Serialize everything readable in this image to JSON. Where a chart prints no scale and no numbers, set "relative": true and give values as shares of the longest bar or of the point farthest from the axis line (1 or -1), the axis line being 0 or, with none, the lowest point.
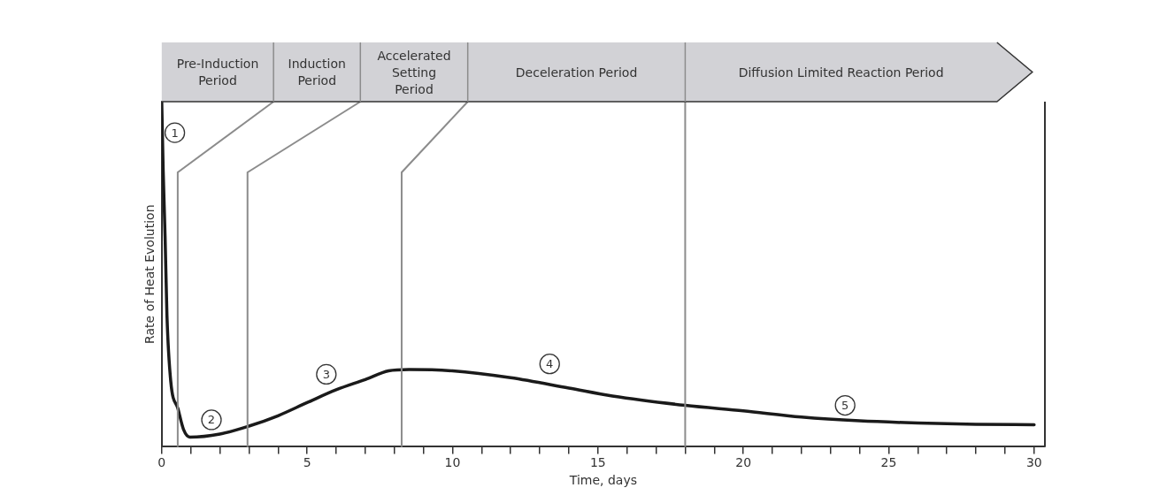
{
  "chart_data": {
    "type": "line",
    "relative": true,
    "xlabel": "Time, days",
    "ylabel": "Rate of Heat Evolution",
    "x": [
      0,
      0.05,
      0.115,
      0.18,
      0.31,
      0.56,
      0.75,
      0.97,
      2,
      3,
      4,
      5,
      6,
      7,
      7.8,
      8.5,
      10,
      12,
      14,
      15.5,
      18,
      20,
      22,
      24,
      26,
      28,
      30
    ],
    "series": [
      {
        "color": "#1a1a1a",
        "values": [
          1,
          0.8,
          0.61,
          0.38,
          0.19,
          0.11,
          0.05,
          0.028,
          0.037,
          0.06,
          0.09,
          0.128,
          0.165,
          0.195,
          0.22,
          0.224,
          0.22,
          0.2,
          0.17,
          0.147,
          0.12,
          0.104,
          0.086,
          0.075,
          0.069,
          0.065,
          0.064
        ]
      }
    ],
    "xlim": [
      0,
      30.37
    ],
    "xticks": [
      0,
      {
        "value": 1,
        "label": null
      },
      {
        "value": 2,
        "label": null
      },
      {
        "value": 3,
        "label": null
      },
      {
        "value": 4,
        "label": null
      },
      5,
      {
        "value": 6,
        "label": null
      },
      {
        "value": 7,
        "label": null
      },
      {
        "value": 8,
        "label": null
      },
      {
        "value": 9,
        "label": null
      },
      10,
      {
        "value": 11,
        "label": null
      },
      {
        "value": 12,
        "label": null
      },
      {
        "value": 13,
        "label": null
      },
      {
        "value": 14,
        "label": null
      },
      15,
      {
        "value": 16,
        "label": null
      },
      {
        "value": 17,
        "label": null
      },
      {
        "value": 18,
        "label": null
      },
      {
        "value": 19,
        "label": null
      },
      20,
      {
        "value": 21,
        "label": null
      },
      {
        "value": 22,
        "label": null
      },
      {
        "value": 23,
        "label": null
      },
      {
        "value": 24,
        "label": null
      },
      25,
      {
        "value": 26,
        "label": null
      },
      {
        "value": 27,
        "label": null
      },
      {
        "value": 28,
        "label": null
      },
      {
        "value": 29,
        "label": null
      },
      30
    ],
    "ref_lines": [
      {
        "axis": "x",
        "value": 0.55,
        "color": "#8c8c8c"
      },
      {
        "axis": "x",
        "value": 2.95,
        "color": "#8c8c8c"
      },
      {
        "axis": "x",
        "value": 8.25,
        "color": "#8c8c8c"
      },
      {
        "axis": "x",
        "value": 18,
        "color": "#8c8c8c"
      }
    ],
    "annotations": [
      "Pre-Induction\nPeriod",
      "Induction\nPeriod",
      "Accelerated\nSetting\nPeriod",
      "Deceleration Period",
      "Diffusion Limited Reaction Period",
      {
        "text": "1",
        "x": 0.45,
        "y": 0.91
      },
      {
        "text": "2",
        "x": 1.71,
        "y": 0.078
      },
      {
        "text": "3",
        "x": 5.66,
        "y": 0.21
      },
      {
        "text": "4",
        "x": 13.34,
        "y": 0.24
      },
      {
        "text": "5",
        "x": 23.5,
        "y": 0.12
      }
    ],
    "marker": "none",
    "line_style": "solid"
  }
}
